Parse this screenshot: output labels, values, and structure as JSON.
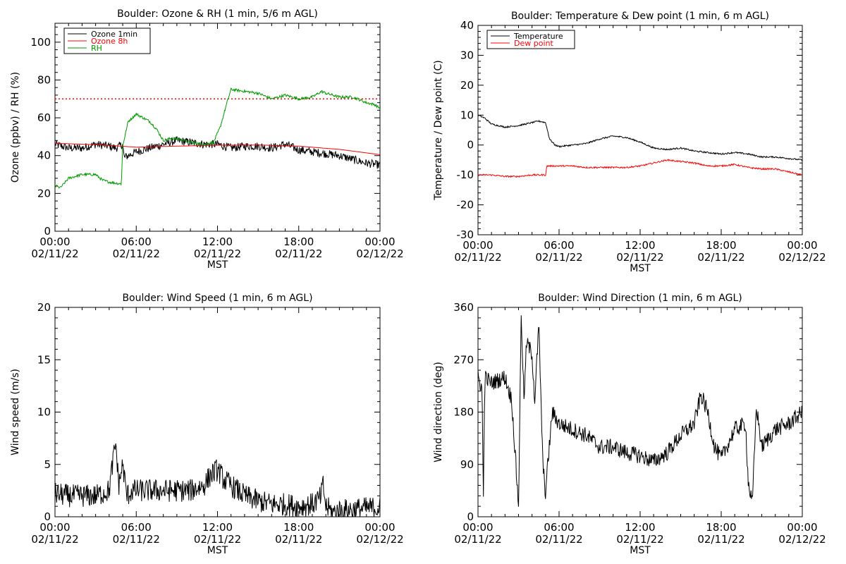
{
  "chart_data": [
    {
      "type": "line",
      "title": "Boulder: Ozone & RH (1 min, 5/6 m AGL)",
      "xlabel": "MST",
      "ylabel": "Ozone (ppbv) / RH (%)",
      "xlim": [
        0,
        24
      ],
      "ylim": [
        0,
        110
      ],
      "yticks": [
        0,
        20,
        40,
        60,
        80,
        100
      ],
      "xtick_times": [
        "00:00",
        "06:00",
        "12:00",
        "18:00",
        "00:00"
      ],
      "xtick_dates": [
        "02/11/22",
        "02/11/22",
        "02/11/22",
        "02/11/22",
        "02/12/22"
      ],
      "legend": "top-left",
      "reference_line": {
        "y": 70,
        "color": "#ff0000",
        "style": "dotted"
      },
      "series": [
        {
          "name": "Ozone 1min",
          "color": "#000000",
          "noise": 2.2,
          "x": [
            0,
            0.5,
            1,
            2,
            3,
            4,
            4.5,
            5,
            5.1,
            6,
            7,
            8,
            9,
            10,
            11,
            12,
            13,
            14,
            15,
            16,
            17,
            18,
            19,
            20,
            21,
            22,
            23,
            24
          ],
          "y": [
            46,
            45,
            44,
            44,
            46,
            45,
            44,
            46,
            39,
            42,
            44,
            46,
            48,
            47,
            46,
            46,
            44,
            45,
            45,
            44,
            46,
            43,
            42,
            41,
            40,
            38,
            36,
            35
          ]
        },
        {
          "name": "Ozone 8h",
          "color": "#ff0000",
          "noise": 0,
          "x": [
            0,
            3,
            6,
            9,
            12,
            15,
            18,
            21,
            24
          ],
          "y": [
            46.5,
            45.8,
            44.5,
            45,
            45.5,
            45.6,
            45,
            43.3,
            40.5
          ]
        },
        {
          "name": "RH",
          "color": "#009900",
          "noise": 0.7,
          "x": [
            0,
            0.4,
            1,
            2,
            3,
            3.5,
            4,
            4.9,
            5.0,
            5.4,
            6,
            7,
            7.5,
            8,
            8.5,
            9,
            10,
            11,
            11.7,
            12.2,
            12.7,
            13,
            14,
            15,
            16,
            17,
            18,
            19,
            19.7,
            20,
            21,
            22,
            23,
            23.6,
            24
          ],
          "y": [
            24,
            23,
            28,
            30,
            30,
            27,
            26,
            25,
            45,
            58,
            62,
            58,
            54,
            48,
            49,
            49,
            47,
            46,
            47,
            55,
            68,
            75,
            74,
            73,
            70,
            72,
            70,
            71,
            74,
            73,
            71,
            71,
            68,
            67,
            65
          ]
        }
      ]
    },
    {
      "type": "line",
      "title": "Boulder: Temperature & Dew point (1 min, 6 m AGL)",
      "xlabel": "MST",
      "ylabel": "Temperature / Dew point (C)",
      "xlim": [
        0,
        24
      ],
      "ylim": [
        -30,
        40
      ],
      "yticks": [
        -30,
        -20,
        -10,
        0,
        10,
        20,
        30,
        40
      ],
      "xtick_times": [
        "00:00",
        "06:00",
        "12:00",
        "18:00",
        "00:00"
      ],
      "xtick_dates": [
        "02/11/22",
        "02/11/22",
        "02/11/22",
        "02/11/22",
        "02/12/22"
      ],
      "legend": "top-left",
      "series": [
        {
          "name": "Temperature",
          "color": "#000000",
          "noise": 0.25,
          "x": [
            0,
            0.5,
            1,
            2,
            3,
            4,
            4.5,
            5,
            5.3,
            5.7,
            6,
            7,
            8,
            9,
            10,
            11,
            12,
            13,
            14,
            15,
            16,
            17,
            18,
            19,
            20,
            21,
            22,
            23,
            24
          ],
          "y": [
            10,
            9,
            7,
            6,
            6.5,
            7.5,
            8,
            7.5,
            2,
            0,
            -0.5,
            0,
            0.5,
            2,
            3,
            2.5,
            1,
            -1,
            -1.5,
            -1,
            -2,
            -2.5,
            -3,
            -2.5,
            -3,
            -4,
            -4,
            -4.5,
            -5
          ]
        },
        {
          "name": "Dew point",
          "color": "#ff0000",
          "noise": 0.25,
          "x": [
            0,
            1,
            2,
            3,
            4,
            4.5,
            5.0,
            5.1,
            6,
            7,
            8,
            9,
            10,
            11,
            12,
            13,
            14,
            15,
            16,
            17,
            18,
            19,
            20,
            21,
            22,
            23,
            24
          ],
          "y": [
            -10,
            -10,
            -10.5,
            -10.5,
            -10,
            -10,
            -10,
            -7,
            -7,
            -7,
            -7.5,
            -7.5,
            -7.5,
            -7.5,
            -7,
            -6,
            -5,
            -5.5,
            -6,
            -7,
            -7,
            -6.5,
            -7.5,
            -8,
            -8,
            -9,
            -10
          ]
        }
      ]
    },
    {
      "type": "line",
      "title": "Boulder: Wind Speed (1 min, 6 m AGL)",
      "xlabel": "MST",
      "ylabel": "Wind speed (m/s)",
      "xlim": [
        0,
        24
      ],
      "ylim": [
        0,
        20
      ],
      "yticks": [
        0,
        5,
        10,
        15,
        20
      ],
      "xtick_times": [
        "00:00",
        "06:00",
        "12:00",
        "18:00",
        "00:00"
      ],
      "xtick_dates": [
        "02/11/22",
        "02/11/22",
        "02/11/22",
        "02/11/22",
        "02/12/22"
      ],
      "series": [
        {
          "name": "",
          "color": "#000000",
          "noise": 1.1,
          "x": [
            0,
            1,
            2,
            3,
            4,
            4.3,
            4.5,
            4.7,
            5,
            5.3,
            5.7,
            6,
            7,
            8,
            9,
            10,
            11,
            11.5,
            12,
            12.5,
            13,
            14,
            15,
            16,
            17,
            18,
            19,
            19.6,
            19.8,
            20,
            20.5,
            21,
            22,
            23,
            24
          ],
          "y": [
            2.2,
            2,
            2,
            2,
            2.5,
            5.5,
            7,
            3,
            5,
            2,
            2.5,
            2.5,
            2.5,
            2.5,
            2.5,
            2.5,
            3,
            4,
            4.5,
            3.5,
            3,
            2,
            1.5,
            1.2,
            1.2,
            1.0,
            1.2,
            1.8,
            3,
            1.0,
            0.4,
            0.6,
            0.7,
            0.8,
            0.9
          ]
        }
      ]
    },
    {
      "type": "line",
      "title": "Boulder: Wind Direction (1 min, 6 m AGL)",
      "xlabel": "MST",
      "ylabel": "Wind direction (deg)",
      "xlim": [
        0,
        24
      ],
      "ylim": [
        0,
        360
      ],
      "yticks": [
        0,
        90,
        180,
        270,
        360
      ],
      "xtick_times": [
        "00:00",
        "06:00",
        "12:00",
        "18:00",
        "00:00"
      ],
      "xtick_dates": [
        "02/11/22",
        "02/11/22",
        "02/11/22",
        "02/11/22",
        "02/12/22"
      ],
      "series": [
        {
          "name": "",
          "color": "#000000",
          "noise": 14,
          "x": [
            0,
            0.3,
            0.4,
            0.5,
            1,
            2,
            2.5,
            2.8,
            3.0,
            3.2,
            3.4,
            3.6,
            4,
            4.2,
            4.5,
            4.8,
            5,
            5.2,
            5.5,
            6,
            7,
            8,
            9,
            10,
            11,
            12,
            13,
            14,
            15,
            16,
            16.5,
            17,
            17.5,
            18,
            19,
            19.8,
            20,
            20.3,
            20.6,
            21,
            22,
            23,
            24
          ],
          "y": [
            240,
            220,
            30,
            240,
            230,
            240,
            200,
            90,
            20,
            350,
            200,
            300,
            280,
            200,
            330,
            90,
            40,
            100,
            180,
            160,
            150,
            140,
            120,
            120,
            110,
            105,
            95,
            110,
            140,
            160,
            210,
            180,
            120,
            100,
            150,
            160,
            60,
            20,
            190,
            120,
            150,
            160,
            180
          ]
        }
      ]
    }
  ]
}
